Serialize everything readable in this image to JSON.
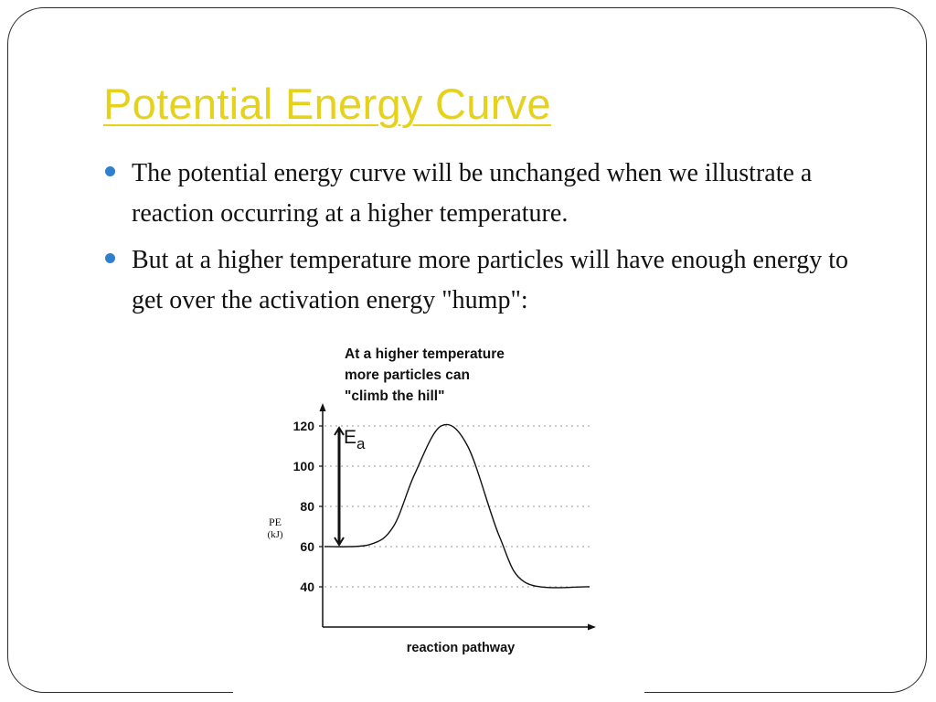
{
  "slide": {
    "title": "Potential Energy Curve",
    "bullets": [
      "The potential energy curve will be unchanged when we illustrate a reaction occurring at a higher temperature.",
      "But at a higher temperature more particles will have enough energy to get over the activation energy \"hump\":"
    ],
    "colors": {
      "title": "#e6d21a",
      "bullet": "#2f7fd0",
      "text": "#111111"
    }
  },
  "chart_data": {
    "type": "line",
    "annotation": [
      "At a higher temperature",
      "more particles can",
      "\"climb the hill\""
    ],
    "ylabel_lines": [
      "PE",
      "(kJ)"
    ],
    "xlabel": "reaction pathway",
    "yticks": [
      40,
      60,
      80,
      100,
      120
    ],
    "ylim": [
      40,
      120
    ],
    "grid": true,
    "activation_energy_label": "E",
    "activation_energy_subscript": "a",
    "series": [
      {
        "points": [
          [
            0,
            60
          ],
          [
            0.17,
            61
          ],
          [
            0.26,
            70
          ],
          [
            0.34,
            96
          ],
          [
            0.44,
            120
          ],
          [
            0.54,
            110
          ],
          [
            0.66,
            65
          ],
          [
            0.76,
            42
          ],
          [
            1,
            40
          ]
        ]
      }
    ]
  }
}
